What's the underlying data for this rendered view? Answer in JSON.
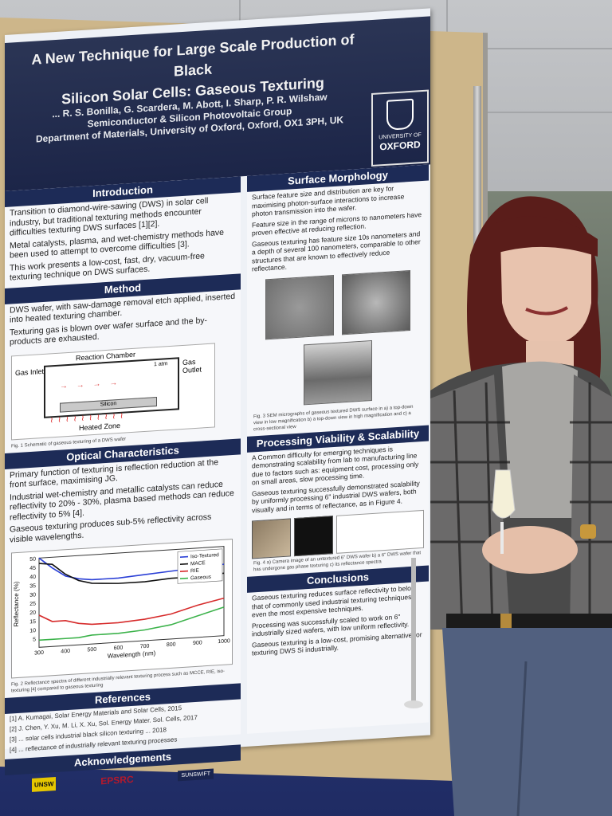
{
  "poster": {
    "title_line1": "A New Technique for Large Scale Production of Black",
    "title_line2": "Silicon Solar Cells: Gaseous Texturing",
    "authors": "... R. S. Bonilla, G. Scardera, M. Abott, I. Sharp, P. R. Wilshaw",
    "group": "Semiconductor & Silicon Photovoltaic Group",
    "department": "Department of Materials, University of Oxford, Oxford, OX1 3PH, UK",
    "logo_university": "UNIVERSITY OF",
    "logo_oxford": "OXFORD"
  },
  "introduction": {
    "heading": "Introduction",
    "bullets": [
      "Transition to diamond-wire-sawing (DWS) in solar cell industry, but traditional texturing methods encounter difficulties texturing DWS surfaces [1][2].",
      "Metal catalysts, plasma, and wet-chemistry methods have been used to attempt to overcome difficulties [3].",
      "This work presents a low-cost, fast, dry, vacuum-free texturing technique on DWS surfaces."
    ]
  },
  "method": {
    "heading": "Method",
    "bullets": [
      "DWS wafer, with saw-damage removal etch applied, inserted into heated texturing chamber.",
      "Texturing gas is blown over wafer surface and the by-products are exhausted."
    ],
    "diagram": {
      "reaction_chamber": "Reaction Chamber",
      "gas_inlet": "Gas Inlet",
      "gas_outlet": "Gas Outlet",
      "pressure": "1 atm",
      "silicon": "Silicon",
      "heated_zone": "Heated Zone"
    },
    "caption": "Fig. 1 Schematic of gaseous texturing of a DWS wafer"
  },
  "optical": {
    "heading": "Optical Characteristics",
    "bullets": [
      "Primary function of texturing is reflection reduction at the front surface, maximising JG.",
      "Industrial wet-chemistry and metallic catalysts can reduce reflectivity to 20% - 30%, plasma based methods can reduce reflectivity to 5% [4].",
      "Gaseous texturing produces sub-5% reflectivity across visible wavelengths."
    ],
    "caption": "Fig. 2 Reflectance spectra of different industrially relevant texturing process such as MCCE, RIE, iso-texturing [4] compared to gaseous texturing"
  },
  "chart_data": {
    "type": "line",
    "xlabel": "Wavelength (nm)",
    "ylabel": "Reflectance (%)",
    "xlim": [
      300,
      1000
    ],
    "ylim": [
      0,
      50
    ],
    "xticks": [
      300,
      400,
      500,
      600,
      700,
      800,
      900,
      1000
    ],
    "yticks": [
      5,
      10,
      15,
      20,
      25,
      30,
      35,
      40,
      45,
      50
    ],
    "legend_position": "top-right",
    "x": [
      300,
      350,
      400,
      450,
      500,
      600,
      700,
      800,
      900,
      1000
    ],
    "series": [
      {
        "name": "Iso-Textured",
        "color": "#2a3fd6",
        "values": [
          50,
          44,
          39,
          37,
          36,
          36,
          37,
          38,
          39,
          40
        ]
      },
      {
        "name": "MACE",
        "color": "#111111",
        "values": [
          47,
          46,
          40,
          36,
          34,
          33,
          33,
          34,
          34,
          35
        ]
      },
      {
        "name": "RIE",
        "color": "#d62a2a",
        "values": [
          18,
          14,
          14,
          12,
          11,
          11,
          12,
          14,
          18,
          21
        ]
      },
      {
        "name": "Gaseous",
        "color": "#3bb24a",
        "values": [
          4,
          4,
          4,
          4,
          5,
          5,
          6,
          8,
          12,
          16
        ]
      }
    ]
  },
  "references": {
    "heading": "References",
    "items": [
      "[1] A. Kumagai, Solar Energy Materials and Solar Cells, 2015",
      "[2] J. Chen, Y. Xu, M. Li, X. Xu, Sol. Energy Mater. Sol. Cells, 2017",
      "[3] ... solar cells industrial black silicon texturing ... 2018",
      "[4] ... reflectance of industrially relevant texturing processes"
    ]
  },
  "acknowledgements": {
    "heading": "Acknowledgements",
    "sponsors": [
      "UNSW",
      "EPSRC",
      "SUNSWIFT"
    ]
  },
  "surface": {
    "heading": "Surface Morphology",
    "bullets": [
      "Surface feature size and distribution are key for maximising photon-surface interactions to increase photon transmission into the wafer.",
      "Feature size in the range of microns to nanometers have proven effective at reducing reflection.",
      "Gaseous texturing has feature size 10s nanometers and a depth of several 100 nanometers, comparable to other structures that are known to effectively reduce reflectance."
    ],
    "caption": "Fig. 3 SEM micrographs of gaseous textured DWS surface in a) a top-down view in low magnification b) a top-down view in high magnification and c) a cross-sectional view"
  },
  "processing": {
    "heading": "Processing Viability & Scalability",
    "bullets": [
      "A Common difficulty for emerging techniques is demonstrating scalability from lab to manufacturing line due to factors such as: equipment cost, processing only on small areas, slow processing time.",
      "Gaseous texturing successfully demonstrated scalability by uniformly processing 6\" industrial DWS wafers, both visually and in terms of reflectance, as in Figure 4."
    ],
    "caption": "Fig. 4 a) Camera image of an untextured 6\" DWS wafer b) a 6\" DWS wafer that has undergone gas phase texturing c) its reflectance spectra"
  },
  "conclusions": {
    "heading": "Conclusions",
    "bullets": [
      "Gaseous texturing reduces surface reflectivity to below that of commonly used industrial texturing techniques, even the most expensive techniques.",
      "Processing was successfully scaled to work on 6\" industrially sized wafers, with low uniform reflectivity.",
      "Gaseous texturing is a low-cost, promising alternative for texturing DWS Si industrially."
    ]
  }
}
